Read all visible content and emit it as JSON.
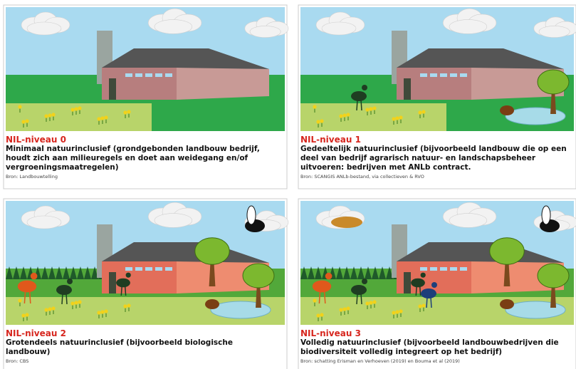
{
  "panels": [
    {
      "title": "NIL-niveau 0",
      "description": "Minimaal natuurinclusief (grondgebonden landbouw bedrijf, houdt zich aan milieuregels en doet aan weidegang en/of vergroeningsmaatregelen)",
      "source": "Bron: Landbouwtelling"
    },
    {
      "title": "NIL-niveau 1",
      "description": "Gedeeltelijk natuurinclusief (bijvoorbeeld landbouw die op een deel van bedrijf agrarisch natuur- en landschapsbeheer uitvoeren: bedrijven met ANLb contract.",
      "source": "Bron: SCANGIS  ANLb-bestand, via collectieven & RVO"
    },
    {
      "title": "NIL-niveau 2",
      "description": "Grotendeels natuurinclusief (bijvoorbeeld biologische landbouw)",
      "source": "Bron: CBS"
    },
    {
      "title": "NIL-niveau 3",
      "description": "Volledig natuurinclusief (bijvoorbeeld landbouwbedrijven die biodiversiteit volledig integreert op het bedrijf)",
      "source": "Bron: schatting Erisman en Verhoeven (2019) en Bouma et al (2019)"
    }
  ]
}
